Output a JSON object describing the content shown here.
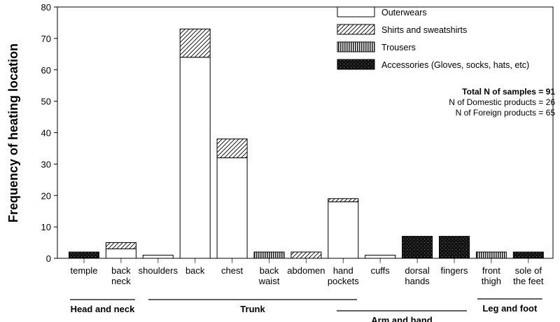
{
  "chart_data": {
    "type": "bar",
    "stacked": true,
    "ylabel": "Frequency of heating location",
    "ylim": [
      0,
      80
    ],
    "yticks": [
      0,
      10,
      20,
      30,
      40,
      50,
      60,
      70,
      80
    ],
    "grid": false,
    "legend_placement": "top-right",
    "categories": [
      [
        "temple"
      ],
      [
        "back",
        "neck"
      ],
      [
        "shoulders"
      ],
      [
        "back"
      ],
      [
        "chest"
      ],
      [
        "back",
        "waist"
      ],
      [
        "abdomen"
      ],
      [
        "hand",
        "pockets"
      ],
      [
        "cuffs"
      ],
      [
        "dorsal",
        "hands"
      ],
      [
        "fingers"
      ],
      [
        "front",
        "thigh"
      ],
      [
        "sole of",
        "the feet"
      ]
    ],
    "series": [
      {
        "name": "Outerwears",
        "pattern": "open",
        "values": [
          0,
          3,
          1,
          64,
          32,
          0,
          0,
          18,
          1,
          0,
          0,
          0,
          0
        ]
      },
      {
        "name": "Shirts and sweatshirts",
        "pattern": "diagonal-hatch",
        "values": [
          0,
          2,
          0,
          9,
          6,
          0,
          2,
          1,
          0,
          0,
          0,
          0,
          0
        ]
      },
      {
        "name": "Trousers",
        "pattern": "vertical-lines",
        "values": [
          0,
          0,
          0,
          0,
          0,
          2,
          0,
          0,
          0,
          0,
          0,
          2,
          0
        ]
      },
      {
        "name": "Accessories (Gloves, socks, hats, etc)",
        "pattern": "dark-dotted",
        "values": [
          2,
          0,
          0,
          0,
          0,
          0,
          0,
          0,
          0,
          7,
          7,
          0,
          2
        ]
      }
    ],
    "groups": [
      {
        "label": "Head and neck",
        "from": 0,
        "to": 1
      },
      {
        "label": "Trunk",
        "from": 2,
        "to": 7
      },
      {
        "label": "Arm and hand",
        "from": 7,
        "to": 10
      },
      {
        "label": "Leg and foot",
        "from": 11,
        "to": 12
      }
    ],
    "annotations": [
      "Total N of samples = 91",
      "N of Domestic products = 26",
      "N of Foreign products = 65"
    ]
  }
}
